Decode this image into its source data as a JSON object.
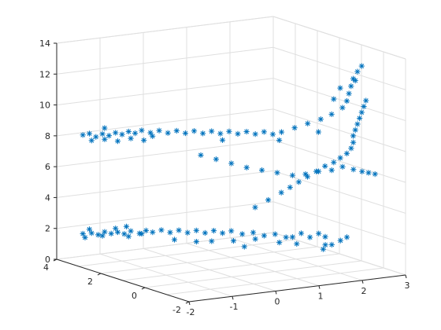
{
  "chart_data": {
    "type": "scatter3",
    "marker": "*",
    "color": "#0072BD",
    "grid": true,
    "box": false,
    "view": "3d-perspective",
    "xlim": [
      -2,
      3
    ],
    "ylim": [
      -2,
      4
    ],
    "zlim": [
      0,
      14
    ],
    "x_ticks": [
      "-2",
      "-1",
      "0",
      "1",
      "2",
      "3"
    ],
    "y_ticks": [
      "-2",
      "0",
      "2",
      "4"
    ],
    "z_ticks": [
      "0",
      "2",
      "4",
      "6",
      "8",
      "10",
      "12",
      "14"
    ],
    "title": "",
    "xlabel": "",
    "ylabel": "",
    "zlabel": "",
    "points": [
      [
        -1.6,
        3.6,
        1.7
      ],
      [
        -1.5,
        3.4,
        1.8
      ],
      [
        -1.4,
        3.3,
        1.7
      ],
      [
        -1.3,
        3.2,
        1.9
      ],
      [
        -1.2,
        3.1,
        1.8
      ],
      [
        -1.1,
        3.0,
        1.9
      ],
      [
        -1.0,
        2.9,
        1.8
      ],
      [
        -0.9,
        2.8,
        2.0
      ],
      [
        -0.8,
        2.6,
        1.9
      ],
      [
        -0.7,
        2.5,
        2.1
      ],
      [
        -0.6,
        2.4,
        2.0
      ],
      [
        -0.5,
        2.2,
        2.2
      ],
      [
        -0.4,
        2.0,
        2.1
      ],
      [
        -0.3,
        1.8,
        2.3
      ],
      [
        -0.2,
        1.6,
        2.2
      ],
      [
        -0.1,
        1.4,
        2.4
      ],
      [
        0.0,
        1.2,
        2.3
      ],
      [
        0.1,
        1.0,
        2.5
      ],
      [
        0.2,
        0.8,
        2.4
      ],
      [
        0.3,
        0.6,
        2.6
      ],
      [
        0.4,
        0.3,
        2.5
      ],
      [
        0.5,
        0.0,
        2.7
      ],
      [
        0.6,
        -0.3,
        2.6
      ],
      [
        0.7,
        -0.6,
        2.8
      ],
      [
        0.8,
        -0.9,
        2.7
      ],
      [
        -1.5,
        3.5,
        2.0
      ],
      [
        -1.3,
        3.3,
        1.6
      ],
      [
        -1.1,
        3.1,
        2.1
      ],
      [
        -0.9,
        2.9,
        1.6
      ],
      [
        -0.7,
        2.7,
        1.8
      ],
      [
        -0.2,
        1.2,
        1.8
      ],
      [
        0.0,
        0.9,
        1.9
      ],
      [
        0.3,
        0.5,
        2.0
      ],
      [
        0.6,
        0.1,
        2.2
      ],
      [
        0.9,
        -0.4,
        2.1
      ],
      [
        1.0,
        -0.8,
        2.6
      ],
      [
        1.1,
        -1.0,
        2.9
      ],
      [
        1.2,
        -1.2,
        2.7
      ],
      [
        1.3,
        -1.4,
        3.0
      ],
      [
        1.4,
        -1.5,
        2.8
      ],
      [
        1.3,
        -1.7,
        2.4
      ],
      [
        1.2,
        -1.8,
        2.2
      ],
      [
        1.5,
        -1.6,
        2.3
      ],
      [
        1.7,
        -1.6,
        2.5
      ],
      [
        1.9,
        -1.5,
        2.6
      ],
      [
        0.8,
        0.5,
        4.0
      ],
      [
        1.0,
        0.3,
        4.5
      ],
      [
        1.2,
        0.1,
        5.0
      ],
      [
        1.3,
        -0.1,
        5.4
      ],
      [
        1.4,
        -0.3,
        5.8
      ],
      [
        1.5,
        -0.5,
        6.2
      ],
      [
        1.6,
        -0.7,
        6.6
      ],
      [
        1.7,
        -0.9,
        7.0
      ],
      [
        1.8,
        -1.1,
        7.3
      ],
      [
        1.9,
        -1.2,
        7.6
      ],
      [
        2.0,
        -1.3,
        7.9
      ],
      [
        2.1,
        -1.3,
        8.2
      ],
      [
        2.2,
        -1.2,
        8.5
      ],
      [
        2.3,
        -1.0,
        8.8
      ],
      [
        2.4,
        -0.9,
        9.1
      ],
      [
        2.5,
        -0.8,
        9.4
      ],
      [
        2.6,
        -0.7,
        9.7
      ],
      [
        2.7,
        -0.6,
        10.0
      ],
      [
        2.8,
        -0.5,
        10.3
      ],
      [
        2.9,
        -0.4,
        10.6
      ],
      [
        -1.6,
        3.6,
        8.1
      ],
      [
        -1.5,
        3.5,
        8.2
      ],
      [
        -1.4,
        3.4,
        8.0
      ],
      [
        -1.3,
        3.3,
        8.2
      ],
      [
        -1.2,
        3.2,
        8.1
      ],
      [
        -1.1,
        3.1,
        8.3
      ],
      [
        -1.0,
        3.0,
        8.2
      ],
      [
        -0.9,
        2.9,
        8.4
      ],
      [
        -0.8,
        2.8,
        8.3
      ],
      [
        -0.7,
        2.7,
        8.5
      ],
      [
        -0.6,
        2.5,
        8.4
      ],
      [
        -0.5,
        2.3,
        8.6
      ],
      [
        -0.4,
        2.1,
        8.5
      ],
      [
        -0.3,
        1.9,
        8.7
      ],
      [
        -0.2,
        1.7,
        8.6
      ],
      [
        -0.1,
        1.5,
        8.8
      ],
      [
        0.0,
        1.3,
        8.7
      ],
      [
        0.1,
        1.1,
        8.9
      ],
      [
        0.2,
        0.9,
        8.8
      ],
      [
        0.3,
        0.7,
        9.0
      ],
      [
        0.4,
        0.5,
        8.9
      ],
      [
        0.5,
        0.3,
        9.1
      ],
      [
        0.6,
        0.1,
        9.0
      ],
      [
        0.7,
        -0.1,
        9.2
      ],
      [
        0.8,
        -0.3,
        9.1
      ],
      [
        -1.5,
        3.4,
        7.8
      ],
      [
        -1.3,
        3.2,
        7.9
      ],
      [
        -1.1,
        3.0,
        7.8
      ],
      [
        -0.9,
        2.8,
        8.0
      ],
      [
        -0.7,
        2.6,
        7.9
      ],
      [
        -0.2,
        1.0,
        7.5
      ],
      [
        0.0,
        0.7,
        7.3
      ],
      [
        0.2,
        0.4,
        7.1
      ],
      [
        0.4,
        0.1,
        6.9
      ],
      [
        0.6,
        -0.2,
        6.8
      ],
      [
        0.8,
        -0.5,
        6.7
      ],
      [
        1.0,
        -0.8,
        6.6
      ],
      [
        1.2,
        -1.0,
        6.7
      ],
      [
        1.4,
        -1.2,
        6.9
      ],
      [
        1.6,
        -1.4,
        7.0
      ],
      [
        1.8,
        -1.5,
        7.2
      ],
      [
        2.0,
        -1.6,
        7.0
      ],
      [
        2.2,
        -1.6,
        6.8
      ],
      [
        2.4,
        -1.5,
        6.6
      ],
      [
        2.6,
        -1.4,
        6.4
      ],
      [
        0.9,
        -0.5,
        9.3
      ],
      [
        1.1,
        -0.7,
        9.6
      ],
      [
        1.3,
        -0.9,
        9.9
      ],
      [
        1.5,
        -1.1,
        10.2
      ],
      [
        1.7,
        -1.2,
        10.5
      ],
      [
        1.9,
        -1.3,
        10.9
      ],
      [
        2.0,
        -1.3,
        11.3
      ],
      [
        2.1,
        -1.2,
        11.7
      ],
      [
        2.2,
        -1.1,
        12.1
      ],
      [
        2.3,
        -1.0,
        12.5
      ],
      [
        2.5,
        -0.8,
        12.8
      ],
      [
        2.7,
        -0.6,
        13.0
      ],
      [
        2.4,
        -0.9,
        12.3
      ],
      [
        2.0,
        -1.0,
        12.0
      ],
      [
        1.8,
        -1.1,
        11.4
      ],
      [
        -1.6,
        3.5,
        1.5
      ],
      [
        -0.9,
        3.0,
        2.2
      ],
      [
        -0.3,
        2.0,
        1.6
      ],
      [
        0.5,
        0.4,
        1.6
      ],
      [
        1.2,
        -0.6,
        2.0
      ],
      [
        -1.2,
        3.4,
        8.5
      ],
      [
        -0.5,
        2.6,
        8.1
      ],
      [
        0.3,
        1.0,
        8.3
      ],
      [
        1.0,
        -0.2,
        8.6
      ],
      [
        1.6,
        -0.8,
        9.2
      ]
    ]
  }
}
